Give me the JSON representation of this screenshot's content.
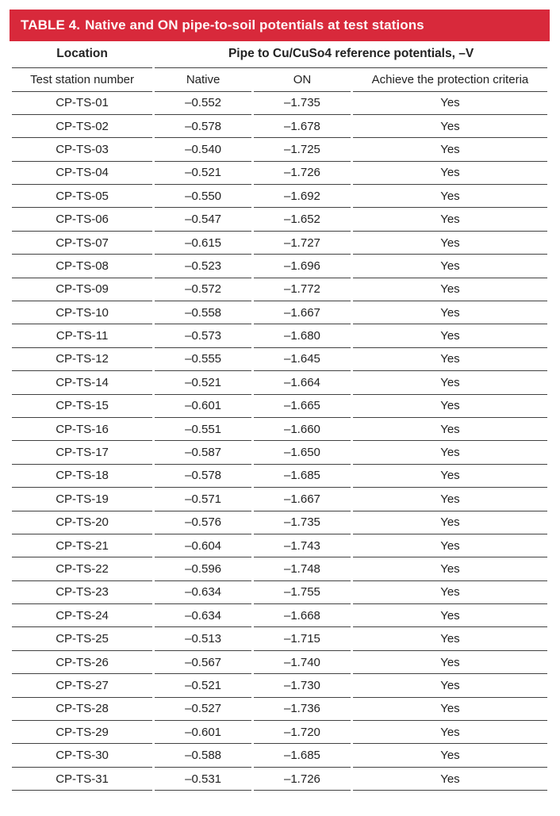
{
  "colors": {
    "accent_red": "#d8293b",
    "rule_line": "#414141"
  },
  "table": {
    "title_label": "TABLE 4.",
    "title_text": "Native and ON pipe-to-soil potentials at test stations",
    "header": {
      "location": "Location",
      "potentials_group": "Pipe to Cu/CuSo4 reference potentials, –V",
      "columns": [
        "Test station number",
        "Native",
        "ON",
        "Achieve the protection criteria"
      ]
    },
    "rows": [
      {
        "station": "CP-TS-01",
        "native": "–0.552",
        "on": "–1.735",
        "criteria": "Yes"
      },
      {
        "station": "CP-TS-02",
        "native": "–0.578",
        "on": "–1.678",
        "criteria": "Yes"
      },
      {
        "station": "CP-TS-03",
        "native": "–0.540",
        "on": "–1.725",
        "criteria": "Yes"
      },
      {
        "station": "CP-TS-04",
        "native": "–0.521",
        "on": "–1.726",
        "criteria": "Yes"
      },
      {
        "station": "CP-TS-05",
        "native": "–0.550",
        "on": "–1.692",
        "criteria": "Yes"
      },
      {
        "station": "CP-TS-06",
        "native": "–0.547",
        "on": "–1.652",
        "criteria": "Yes"
      },
      {
        "station": "CP-TS-07",
        "native": "–0.615",
        "on": "–1.727",
        "criteria": "Yes"
      },
      {
        "station": "CP-TS-08",
        "native": "–0.523",
        "on": "–1.696",
        "criteria": "Yes"
      },
      {
        "station": "CP-TS-09",
        "native": "–0.572",
        "on": "–1.772",
        "criteria": "Yes"
      },
      {
        "station": "CP-TS-10",
        "native": "–0.558",
        "on": "–1.667",
        "criteria": "Yes"
      },
      {
        "station": "CP-TS-11",
        "native": "–0.573",
        "on": "–1.680",
        "criteria": "Yes"
      },
      {
        "station": "CP-TS-12",
        "native": "–0.555",
        "on": "–1.645",
        "criteria": "Yes"
      },
      {
        "station": "CP-TS-14",
        "native": "–0.521",
        "on": "–1.664",
        "criteria": "Yes"
      },
      {
        "station": "CP-TS-15",
        "native": "–0.601",
        "on": "–1.665",
        "criteria": "Yes"
      },
      {
        "station": "CP-TS-16",
        "native": "–0.551",
        "on": "–1.660",
        "criteria": "Yes"
      },
      {
        "station": "CP-TS-17",
        "native": "–0.587",
        "on": "–1.650",
        "criteria": "Yes"
      },
      {
        "station": "CP-TS-18",
        "native": "–0.578",
        "on": "–1.685",
        "criteria": "Yes"
      },
      {
        "station": "CP-TS-19",
        "native": "–0.571",
        "on": "–1.667",
        "criteria": "Yes"
      },
      {
        "station": "CP-TS-20",
        "native": "–0.576",
        "on": "–1.735",
        "criteria": "Yes"
      },
      {
        "station": "CP-TS-21",
        "native": "–0.604",
        "on": "–1.743",
        "criteria": "Yes"
      },
      {
        "station": "CP-TS-22",
        "native": "–0.596",
        "on": "–1.748",
        "criteria": "Yes"
      },
      {
        "station": "CP-TS-23",
        "native": "–0.634",
        "on": "–1.755",
        "criteria": "Yes"
      },
      {
        "station": "CP-TS-24",
        "native": "–0.634",
        "on": "–1.668",
        "criteria": "Yes"
      },
      {
        "station": "CP-TS-25",
        "native": "–0.513",
        "on": "–1.715",
        "criteria": "Yes"
      },
      {
        "station": "CP-TS-26",
        "native": "–0.567",
        "on": "–1.740",
        "criteria": "Yes"
      },
      {
        "station": "CP-TS-27",
        "native": "–0.521",
        "on": "–1.730",
        "criteria": "Yes"
      },
      {
        "station": "CP-TS-28",
        "native": "–0.527",
        "on": "–1.736",
        "criteria": "Yes"
      },
      {
        "station": "CP-TS-29",
        "native": "–0.601",
        "on": "–1.720",
        "criteria": "Yes"
      },
      {
        "station": "CP-TS-30",
        "native": "–0.588",
        "on": "–1.685",
        "criteria": "Yes"
      },
      {
        "station": "CP-TS-31",
        "native": "–0.531",
        "on": "–1.726",
        "criteria": "Yes"
      }
    ]
  }
}
